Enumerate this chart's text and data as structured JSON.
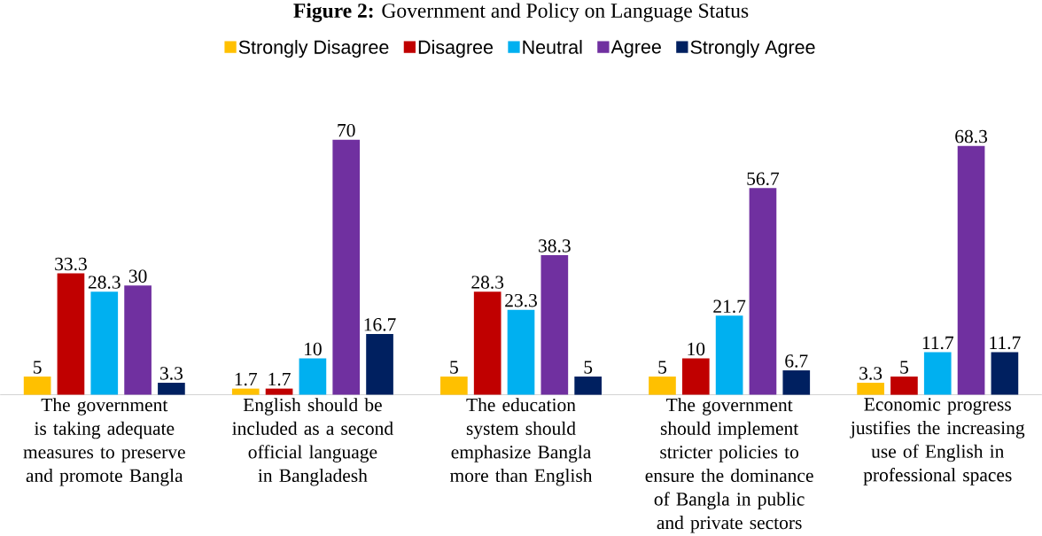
{
  "chart_data": {
    "type": "bar",
    "title": "**Figure 2:** Government and Policy on Language Status",
    "categories": [
      "The government is taking adequate measures to preserve and promote Bangla",
      "English should be included as a second official language in Bangladesh",
      "The education system should emphasize Bangla more than English",
      "The government should implement stricter policies to ensure the dominance of Bangla in public and private sectors",
      "Economic progress justifies the increasing use of English in professional spaces"
    ],
    "series": [
      {
        "name": "Strongly Disagree",
        "color": "#ffc000",
        "values": [
          5,
          1.7,
          5,
          5,
          3.3
        ]
      },
      {
        "name": "Disagree",
        "color": "#c00000",
        "values": [
          33.3,
          1.7,
          28.3,
          10,
          5
        ]
      },
      {
        "name": "Neutral",
        "color": "#00b0f0",
        "values": [
          28.3,
          10,
          23.3,
          21.7,
          11.7
        ]
      },
      {
        "name": "Agree",
        "color": "#7030a0",
        "values": [
          30,
          70,
          38.3,
          56.7,
          68.3
        ]
      },
      {
        "name": "Strongly Agree",
        "color": "#002060",
        "values": [
          3.3,
          16.7,
          5,
          6.7,
          11.7
        ]
      }
    ],
    "data_labels": true,
    "legend": "top"
  }
}
